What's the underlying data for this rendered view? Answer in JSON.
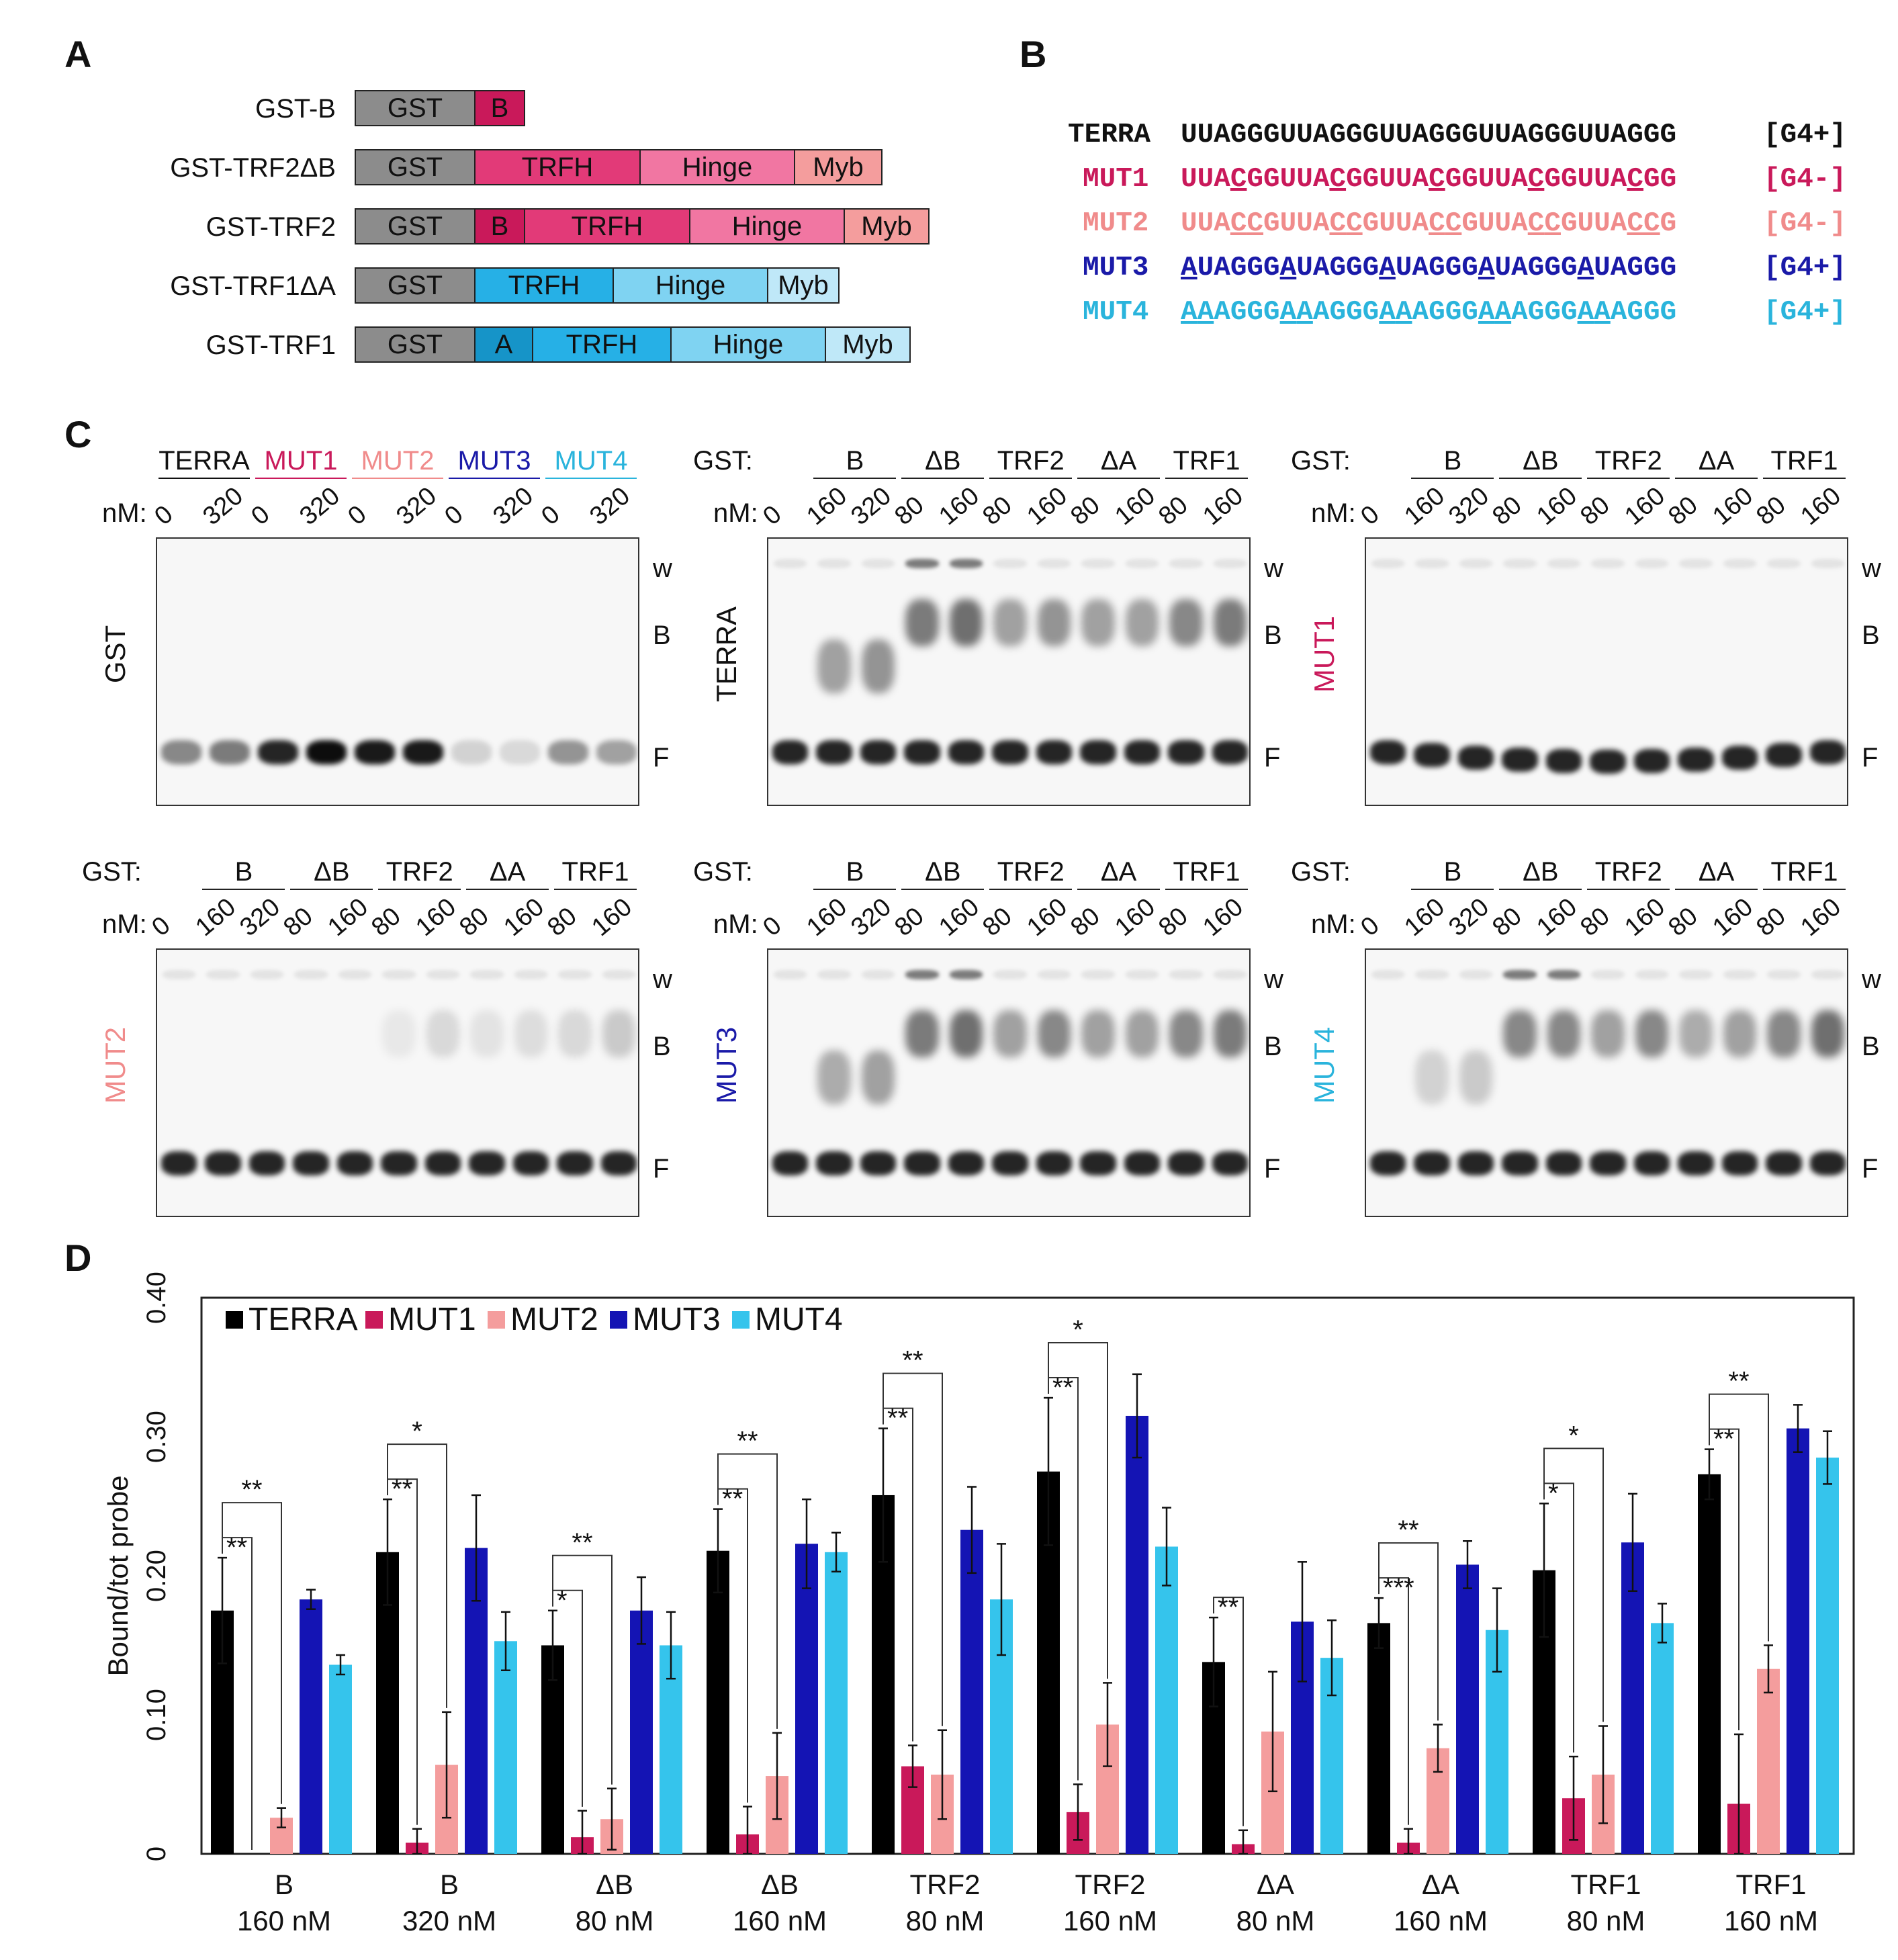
{
  "panels": {
    "a": "A",
    "b": "B",
    "c": "C",
    "d": "D"
  },
  "constructs": [
    {
      "name": "GST-B",
      "domains": [
        {
          "label": "GST",
          "color": "#8c8c8c"
        },
        {
          "label": "B",
          "color": "#c9195a"
        }
      ]
    },
    {
      "name": "GST-TRF2ΔB",
      "domains": [
        {
          "label": "GST",
          "color": "#8c8c8c"
        },
        {
          "label": "TRFH",
          "color": "#e23a78"
        },
        {
          "label": "Hinge",
          "color": "#f176a2"
        },
        {
          "label": "Myb",
          "color": "#f49d9d"
        }
      ]
    },
    {
      "name": "GST-TRF2",
      "domains": [
        {
          "label": "GST",
          "color": "#8c8c8c"
        },
        {
          "label": "B",
          "color": "#c9195a"
        },
        {
          "label": "TRFH",
          "color": "#e23a78"
        },
        {
          "label": "Hinge",
          "color": "#f176a2"
        },
        {
          "label": "Myb",
          "color": "#f49d9d"
        }
      ]
    },
    {
      "name": "GST-TRF1ΔA",
      "domains": [
        {
          "label": "GST",
          "color": "#8c8c8c"
        },
        {
          "label": "TRFH",
          "color": "#26b0e6"
        },
        {
          "label": "Hinge",
          "color": "#7fd3f2"
        },
        {
          "label": "Myb",
          "color": "#bfe8f8"
        }
      ]
    },
    {
      "name": "GST-TRF1",
      "domains": [
        {
          "label": "GST",
          "color": "#8c8c8c"
        },
        {
          "label": "A",
          "color": "#1694c8"
        },
        {
          "label": "TRFH",
          "color": "#26b0e6"
        },
        {
          "label": "Hinge",
          "color": "#7fd3f2"
        },
        {
          "label": "Myb",
          "color": "#bfe8f8"
        }
      ]
    }
  ],
  "sequences": [
    {
      "name": "TERRA",
      "seq": "UUAGGGUUAGGGUUAGGGUUAGGGUUAGGG",
      "tag": "[G4+]",
      "color": "#111111"
    },
    {
      "name": "MUT1",
      "seq": "UUACGGUUACGGUUACGGUUACGGUUACGG",
      "tag": "[G4-]",
      "color": "#c9195a"
    },
    {
      "name": "MUT2",
      "seq": "UUACCGUUACCGUUACCGUUACCGUUACCG",
      "tag": "[G4-]",
      "color": "#f08b8b"
    },
    {
      "name": "MUT3",
      "seq": "AUAGGGAUAGGGAUAGGGAUAGGGAUAGGG",
      "tag": "[G4+]",
      "color": "#1a1aa8"
    },
    {
      "name": "MUT4",
      "seq": "AAAGGGAAAGGGAAAGGGAAAGGGAAAGGG",
      "tag": "[G4+]",
      "color": "#2ab4dc"
    }
  ],
  "gels": {
    "gst_label": "GST:",
    "nm_label": "nM:",
    "band_labels": [
      "w",
      "B",
      "F"
    ],
    "first": {
      "probe": "GST",
      "groups": [
        "TERRA",
        "MUT1",
        "MUT2",
        "MUT3",
        "MUT4"
      ],
      "concs": [
        "0",
        "320",
        "0",
        "320",
        "0",
        "320",
        "0",
        "320",
        "0",
        "320"
      ]
    },
    "groups": [
      "B",
      "ΔB",
      "TRF2",
      "ΔA",
      "TRF1"
    ],
    "concs": [
      "0",
      "160",
      "320",
      "80",
      "160",
      "80",
      "160",
      "80",
      "160",
      "80",
      "160"
    ],
    "probes": [
      "TERRA",
      "MUT1",
      "MUT2",
      "MUT3",
      "MUT4"
    ]
  },
  "chart_data": {
    "type": "bar",
    "ylabel": "Bound/tot probe",
    "ylim": [
      0,
      0.4
    ],
    "yticks": [
      "0",
      "0.10",
      "0.20",
      "0.30",
      "0.40"
    ],
    "categories": [
      [
        "B",
        "160 nM"
      ],
      [
        "B",
        "320 nM"
      ],
      [
        "ΔB",
        "80 nM"
      ],
      [
        "ΔB",
        "160 nM"
      ],
      [
        "TRF2",
        "80 nM"
      ],
      [
        "TRF2",
        "160 nM"
      ],
      [
        "ΔA",
        "80 nM"
      ],
      [
        "ΔA",
        "160 nM"
      ],
      [
        "TRF1",
        "80 nM"
      ],
      [
        "TRF1",
        "160 nM"
      ]
    ],
    "series": [
      {
        "name": "TERRA",
        "color": "#000000",
        "values": [
          0.175,
          0.217,
          0.15,
          0.218,
          0.258,
          0.275,
          0.138,
          0.166,
          0.204,
          0.273
        ],
        "errors": [
          0.038,
          0.038,
          0.025,
          0.03,
          0.048,
          0.053,
          0.032,
          0.018,
          0.048,
          0.018
        ]
      },
      {
        "name": "MUT1",
        "color": "#c9195a",
        "values": [
          0.0,
          0.008,
          0.012,
          0.014,
          0.063,
          0.03,
          0.007,
          0.008,
          0.04,
          0.036
        ],
        "errors": [
          0.0,
          0.01,
          0.019,
          0.02,
          0.015,
          0.02,
          0.01,
          0.01,
          0.03,
          0.05
        ]
      },
      {
        "name": "MUT2",
        "color": "#f49d9d",
        "values": [
          0.026,
          0.064,
          0.025,
          0.056,
          0.057,
          0.093,
          0.088,
          0.076,
          0.057,
          0.133
        ],
        "errors": [
          0.007,
          0.038,
          0.022,
          0.031,
          0.032,
          0.03,
          0.043,
          0.017,
          0.035,
          0.017
        ]
      },
      {
        "name": "MUT3",
        "color": "#1414b4",
        "values": [
          0.183,
          0.22,
          0.175,
          0.223,
          0.233,
          0.315,
          0.167,
          0.208,
          0.224,
          0.306
        ],
        "errors": [
          0.007,
          0.038,
          0.024,
          0.032,
          0.031,
          0.03,
          0.043,
          0.017,
          0.035,
          0.017
        ]
      },
      {
        "name": "MUT4",
        "color": "#35c4ec",
        "values": [
          0.136,
          0.153,
          0.15,
          0.217,
          0.183,
          0.221,
          0.141,
          0.161,
          0.166,
          0.285
        ],
        "errors": [
          0.007,
          0.021,
          0.024,
          0.014,
          0.04,
          0.028,
          0.027,
          0.03,
          0.014,
          0.019
        ]
      }
    ],
    "significance": [
      {
        "cat": 0,
        "inner": "**",
        "outer": "**"
      },
      {
        "cat": 1,
        "inner": "**",
        "outer": "*"
      },
      {
        "cat": 2,
        "inner": "*",
        "outer": "**"
      },
      {
        "cat": 3,
        "inner": "**",
        "outer": "**"
      },
      {
        "cat": 4,
        "inner": "**",
        "outer": "**"
      },
      {
        "cat": 5,
        "inner": "**",
        "outer": "*"
      },
      {
        "cat": 6,
        "inner": "**",
        "outer": ""
      },
      {
        "cat": 7,
        "inner": "***",
        "outer": "**"
      },
      {
        "cat": 8,
        "inner": "*",
        "outer": "*"
      },
      {
        "cat": 9,
        "inner": "**",
        "outer": "**"
      }
    ]
  }
}
